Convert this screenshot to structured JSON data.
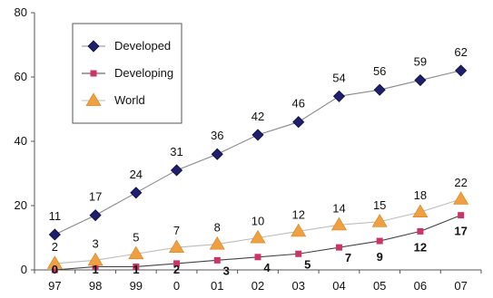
{
  "chart_data": {
    "type": "line",
    "title": "",
    "xlabel": "",
    "ylabel": "",
    "categories": [
      "97",
      "98",
      "99",
      "0",
      "01",
      "02",
      "03",
      "04",
      "05",
      "06",
      "07"
    ],
    "ylim": [
      0,
      80
    ],
    "yticks": [
      "0",
      "20",
      "40",
      "60",
      "80"
    ],
    "grid": false,
    "legend_position": "top-left",
    "series": [
      {
        "name": "Developed",
        "values": [
          11,
          17,
          24,
          31,
          36,
          42,
          46,
          54,
          56,
          59,
          62
        ],
        "labels": [
          "11",
          "17",
          "24",
          "31",
          "36",
          "42",
          "46",
          "54",
          "56",
          "59",
          "62"
        ],
        "color": "#1f1f6e",
        "marker": "diamond"
      },
      {
        "name": "Developing",
        "values": [
          0,
          1,
          1,
          2,
          3,
          4,
          5,
          7,
          9,
          12,
          17
        ],
        "labels": [
          "0",
          "1",
          "1",
          "2",
          "3",
          "4",
          "5",
          "7",
          "9",
          "12",
          "17"
        ],
        "color": "#cc3366",
        "marker": "square"
      },
      {
        "name": "World",
        "values": [
          2,
          3,
          5,
          7,
          8,
          10,
          12,
          14,
          15,
          18,
          22
        ],
        "labels": [
          "2",
          "3",
          "5",
          "7",
          "8",
          "10",
          "12",
          "14",
          "15",
          "18",
          "22"
        ],
        "color": "#f0a040",
        "marker": "triangle"
      }
    ]
  }
}
